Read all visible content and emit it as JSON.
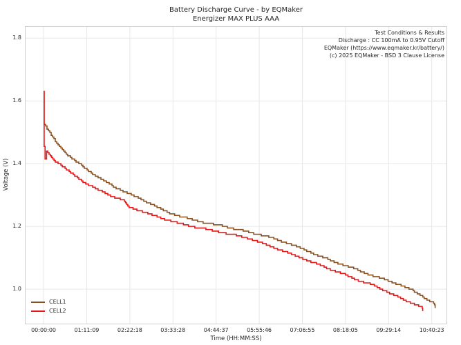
{
  "chart_data": {
    "type": "line",
    "title": "Battery Discharge Curve - by EQMaker",
    "subtitle": "Energizer MAX PLUS AAA",
    "xlabel": "Time (HH:MM:SS)",
    "ylabel": "Voltage (V)",
    "annotation": [
      "Test Conditions & Results",
      "Discharge : CC 100mA to 0.95V Cutoff",
      "EQMaker (https://www.eqmaker.kr/battery/)",
      "(c) 2025 EQMaker - BSD 3 Clause License"
    ],
    "grid": true,
    "legend_position": "lower-left",
    "colors": {
      "grid": "#e7e7e7",
      "border": "#cfcfcf",
      "background": "#ffffff"
    },
    "xlim_seconds": [
      -1850,
      39950
    ],
    "ylim": [
      0.888,
      1.838
    ],
    "x_tick_seconds": [
      0,
      4269,
      8538,
      12808,
      17077,
      21346,
      25615,
      29885,
      34154,
      38423
    ],
    "x_tick_labels": [
      "00:00:00",
      "01:11:09",
      "02:22:18",
      "03:33:28",
      "04:44:37",
      "05:55:46",
      "07:06:55",
      "08:18:05",
      "09:29:14",
      "10:40:23"
    ],
    "y_ticks": [
      1.0,
      1.2,
      1.4,
      1.6,
      1.8
    ],
    "series": [
      {
        "name": "CELL1",
        "color": "#8a5120",
        "points": [
          [
            0,
            1.632
          ],
          [
            60,
            1.525
          ],
          [
            480,
            1.503
          ],
          [
            1160,
            1.47
          ],
          [
            1850,
            1.445
          ],
          [
            2530,
            1.424
          ],
          [
            3210,
            1.406
          ],
          [
            3900,
            1.39
          ],
          [
            4580,
            1.374
          ],
          [
            5260,
            1.359
          ],
          [
            5950,
            1.345
          ],
          [
            6630,
            1.332
          ],
          [
            7320,
            1.321
          ],
          [
            8000,
            1.31
          ],
          [
            8680,
            1.3
          ],
          [
            9370,
            1.29
          ],
          [
            10730,
            1.27
          ],
          [
            12100,
            1.247
          ],
          [
            13470,
            1.232
          ],
          [
            14840,
            1.22
          ],
          [
            16200,
            1.21
          ],
          [
            17570,
            1.202
          ],
          [
            18940,
            1.192
          ],
          [
            20300,
            1.181
          ],
          [
            21670,
            1.172
          ],
          [
            23040,
            1.158
          ],
          [
            24410,
            1.144
          ],
          [
            25780,
            1.126
          ],
          [
            27140,
            1.108
          ],
          [
            28510,
            1.09
          ],
          [
            29880,
            1.075
          ],
          [
            31240,
            1.058
          ],
          [
            32610,
            1.043
          ],
          [
            33980,
            1.028
          ],
          [
            35000,
            1.017
          ],
          [
            36030,
            1.003
          ],
          [
            36710,
            0.992
          ],
          [
            37400,
            0.979
          ],
          [
            38080,
            0.965
          ],
          [
            38500,
            0.957
          ],
          [
            38700,
            0.948
          ],
          [
            38760,
            0.938
          ]
        ]
      },
      {
        "name": "CELL2",
        "color": "#e81414",
        "points": [
          [
            0,
            1.628
          ],
          [
            60,
            1.452
          ],
          [
            150,
            1.415
          ],
          [
            300,
            1.438
          ],
          [
            1160,
            1.408
          ],
          [
            1850,
            1.392
          ],
          [
            2530,
            1.374
          ],
          [
            3210,
            1.358
          ],
          [
            3900,
            1.343
          ],
          [
            4580,
            1.33
          ],
          [
            5260,
            1.318
          ],
          [
            5950,
            1.308
          ],
          [
            6630,
            1.298
          ],
          [
            7320,
            1.289
          ],
          [
            8000,
            1.28
          ],
          [
            8340,
            1.263
          ],
          [
            9370,
            1.252
          ],
          [
            10730,
            1.236
          ],
          [
            12100,
            1.222
          ],
          [
            13470,
            1.209
          ],
          [
            14840,
            1.199
          ],
          [
            16200,
            1.19
          ],
          [
            17570,
            1.181
          ],
          [
            18940,
            1.172
          ],
          [
            20300,
            1.162
          ],
          [
            21670,
            1.146
          ],
          [
            23040,
            1.13
          ],
          [
            24410,
            1.112
          ],
          [
            25780,
            1.096
          ],
          [
            27140,
            1.078
          ],
          [
            28510,
            1.062
          ],
          [
            29880,
            1.045
          ],
          [
            30900,
            1.03
          ],
          [
            31930,
            1.02
          ],
          [
            32610,
            1.012
          ],
          [
            33290,
            1.002
          ],
          [
            33980,
            0.992
          ],
          [
            34660,
            0.982
          ],
          [
            35340,
            0.97
          ],
          [
            36030,
            0.96
          ],
          [
            36710,
            0.953
          ],
          [
            37260,
            0.946
          ],
          [
            37480,
            0.942
          ],
          [
            37530,
            0.932
          ]
        ]
      }
    ]
  }
}
